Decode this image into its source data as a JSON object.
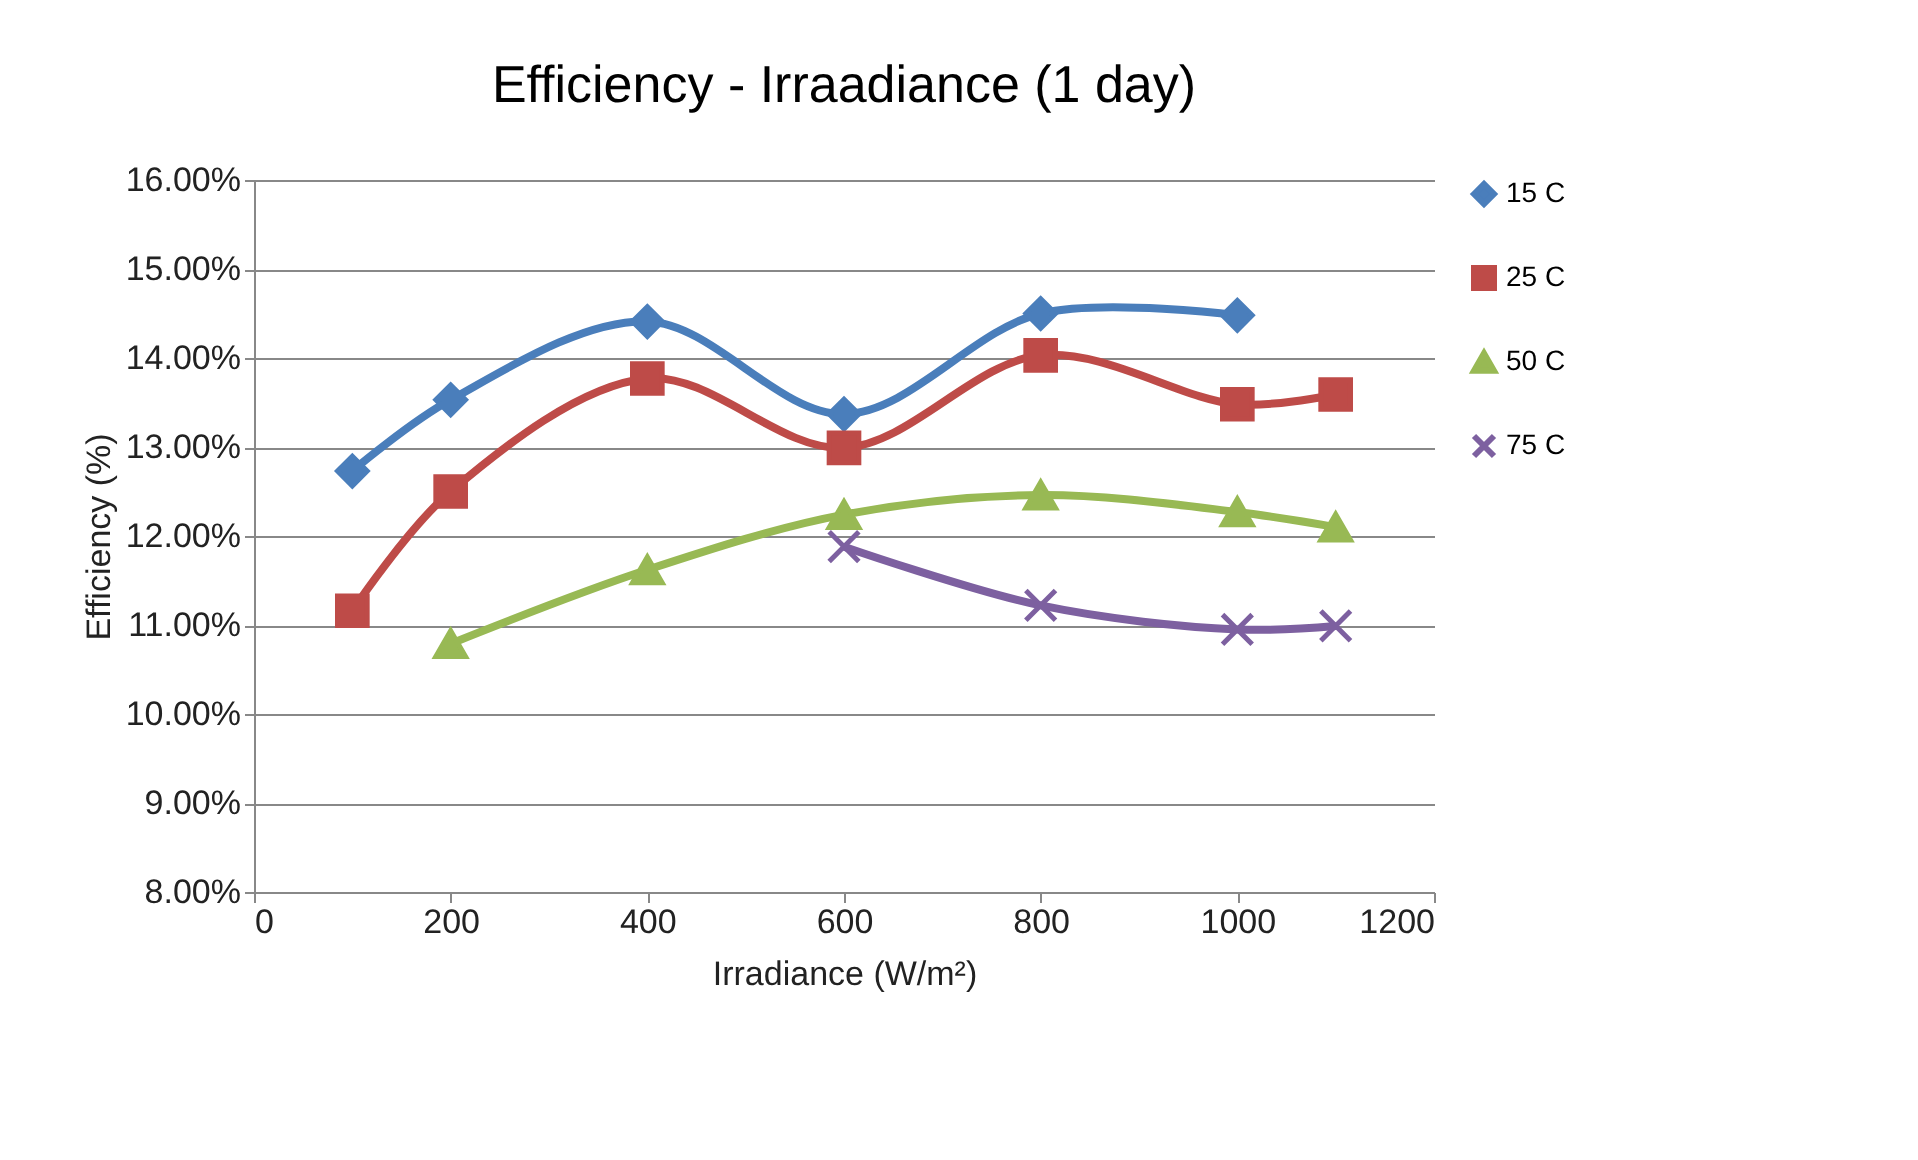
{
  "chart_data": {
    "type": "line",
    "title": "Efficiency - Irraadiance (1 day)",
    "xlabel": "Irradiance (W/m²)",
    "ylabel": "Efficiency (%)",
    "x": [
      100,
      200,
      400,
      600,
      800,
      1000,
      1100
    ],
    "series": [
      {
        "name": "15 C",
        "color": "#4a7ebb",
        "marker": "diamond",
        "values": [
          12.73,
          13.53,
          14.41,
          13.37,
          14.5,
          14.48,
          null
        ]
      },
      {
        "name": "25 C",
        "color": "#be4b48",
        "marker": "square",
        "values": [
          11.16,
          12.5,
          13.77,
          12.99,
          14.03,
          13.48,
          13.59
        ]
      },
      {
        "name": "50 C",
        "color": "#98b954",
        "marker": "triangle",
        "values": [
          null,
          10.79,
          11.62,
          12.24,
          12.46,
          12.27,
          12.1
        ]
      },
      {
        "name": "75 C",
        "color": "#7d60a0",
        "marker": "cross",
        "values": [
          null,
          null,
          null,
          11.88,
          11.22,
          10.95,
          10.99
        ]
      }
    ],
    "xlim": [
      0,
      1200
    ],
    "xticks": [
      0,
      200,
      400,
      600,
      800,
      1000,
      1200
    ],
    "ylim": [
      8,
      16
    ],
    "yticks": [
      {
        "value": 8,
        "label": "8.00%"
      },
      {
        "value": 9,
        "label": "9.00%"
      },
      {
        "value": 10,
        "label": "10.00%"
      },
      {
        "value": 11,
        "label": "11.00%"
      },
      {
        "value": 12,
        "label": "12.00%"
      },
      {
        "value": 13,
        "label": "13.00%"
      },
      {
        "value": 14,
        "label": "14.00%"
      },
      {
        "value": 15,
        "label": "15.00%"
      },
      {
        "value": 16,
        "label": "16.00%"
      }
    ],
    "grid": "y",
    "legend": "right",
    "line_style": "solid"
  }
}
